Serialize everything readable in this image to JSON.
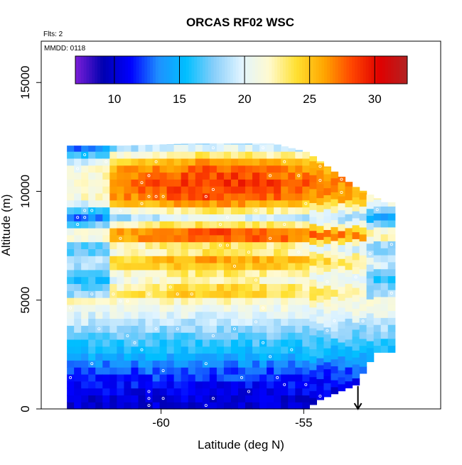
{
  "chart_data": {
    "type": "heatmap",
    "title": "ORCAS RF02 WSC",
    "annotations": [
      "Flts: 2",
      "MMDD: 0118"
    ],
    "xlabel": "Latitude (deg N)",
    "ylabel": "Altitude (m)",
    "xlim": [
      -64.2,
      -50.2
    ],
    "ylim": [
      0,
      16900
    ],
    "x_ticks": [
      -60,
      -55
    ],
    "x_tick_labels": [
      "-60",
      "-55"
    ],
    "y_ticks": [
      0,
      5000,
      10000,
      15000
    ],
    "y_tick_labels": [
      "0",
      "5000",
      "10000",
      "15000"
    ],
    "colorbar": {
      "range": [
        7,
        32.5
      ],
      "ticks": [
        10,
        15,
        20,
        25,
        30
      ],
      "tick_labels": [
        "10",
        "15",
        "20",
        "25",
        "30"
      ],
      "colors": [
        "#7c1fd8",
        "#0000b0",
        "#0000ff",
        "#1e90ff",
        "#00bfff",
        "#87cefa",
        "#e0f4ff",
        "#fffad0",
        "#ffe030",
        "#ffa500",
        "#ff4500",
        "#e00000",
        "#b22222"
      ]
    },
    "grid": false,
    "legend": "none",
    "domain_lat": [
      -63.3,
      -51.9
    ],
    "top_altitude": [
      [
        -63.2,
        12100
      ],
      [
        -61.5,
        12100
      ],
      [
        -59,
        12200
      ],
      [
        -56.2,
        12200
      ],
      [
        -55,
        11800
      ],
      [
        -53.3,
        10200
      ],
      [
        -52.3,
        9500
      ]
    ],
    "bottom_altitude": [
      [
        -63.3,
        0
      ],
      [
        -55,
        0
      ],
      [
        -54.6,
        400
      ],
      [
        -53.3,
        1100
      ],
      [
        -52.6,
        2600
      ]
    ],
    "band_levels": [
      {
        "alt": 300,
        "value": 10
      },
      {
        "alt": 1000,
        "value": 11
      },
      {
        "alt": 1800,
        "value": 12.5
      },
      {
        "alt": 2500,
        "value": 15
      },
      {
        "alt": 3300,
        "value": 17
      },
      {
        "alt": 4000,
        "value": 19
      },
      {
        "alt": 4700,
        "value": 21
      },
      {
        "alt": 5400,
        "value": 23
      },
      {
        "alt": 6000,
        "value": 20
      },
      {
        "alt": 6800,
        "value": 24.5
      },
      {
        "alt": 7400,
        "value": 20
      },
      {
        "alt": 8000,
        "value": 28
      },
      {
        "alt": 8800,
        "value": 18
      },
      {
        "alt": 9600,
        "value": 26
      },
      {
        "alt": 10500,
        "value": 27
      },
      {
        "alt": 11300,
        "value": 25
      },
      {
        "alt": 12100,
        "value": 17
      }
    ],
    "flight_track_marker": {
      "lat": -53.1,
      "alt": 400,
      "symbol": "down-arrow"
    }
  }
}
